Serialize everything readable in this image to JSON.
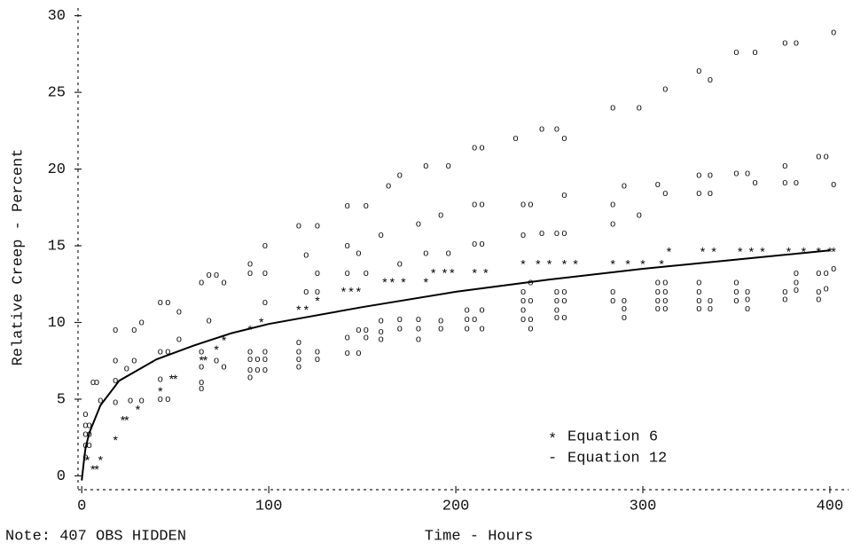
{
  "chart_data": {
    "type": "scatter",
    "x_label": "Time - Hours",
    "y_label": "Relative Creep - Percent",
    "note": "Note: 407 OBS HIDDEN",
    "xlim": [
      -2,
      410
    ],
    "ylim": [
      -0.9,
      30.5
    ],
    "xticks": [
      0,
      100,
      200,
      300,
      400
    ],
    "yticks": [
      0,
      5,
      10,
      15,
      20,
      25,
      30
    ],
    "legend": "lower right",
    "series": [
      {
        "style": "points",
        "marker": "o",
        "color": "#111",
        "x": [
          2,
          2,
          2,
          2,
          2,
          4,
          4,
          4,
          6,
          8,
          10,
          18,
          18,
          18,
          18,
          24,
          26,
          28,
          28,
          32,
          32,
          42,
          42,
          42,
          42,
          46,
          46,
          46,
          52,
          52,
          64,
          64,
          64,
          64,
          64,
          68,
          68,
          72,
          72,
          76,
          76,
          90,
          90,
          90,
          90,
          90,
          90,
          94,
          94,
          98,
          98,
          98,
          98,
          98,
          98,
          116,
          116,
          116,
          116,
          116,
          120,
          120,
          126,
          126,
          126,
          126,
          126,
          142,
          142,
          142,
          142,
          142,
          148,
          148,
          148,
          152,
          152,
          152,
          152,
          160,
          160,
          160,
          160,
          164,
          170,
          170,
          170,
          170,
          180,
          180,
          180,
          180,
          184,
          184,
          192,
          192,
          192,
          196,
          196,
          206,
          206,
          206,
          210,
          210,
          210,
          210,
          214,
          214,
          214,
          214,
          214,
          232,
          236,
          236,
          236,
          236,
          236,
          236,
          240,
          240,
          240,
          240,
          240,
          246,
          246,
          254,
          254,
          254,
          254,
          254,
          254,
          258,
          258,
          258,
          258,
          258,
          258,
          284,
          284,
          284,
          284,
          284,
          290,
          290,
          290,
          290,
          298,
          298,
          308,
          308,
          308,
          308,
          308,
          312,
          312,
          312,
          312,
          312,
          312,
          330,
          330,
          330,
          330,
          330,
          330,
          330,
          336,
          336,
          336,
          336,
          336,
          350,
          350,
          350,
          350,
          350,
          356,
          356,
          356,
          356,
          360,
          360,
          376,
          376,
          376,
          376,
          376,
          382,
          382,
          382,
          382,
          382,
          394,
          394,
          394,
          394,
          398,
          398,
          398,
          402,
          402,
          402
        ],
        "values": [
          4.0,
          3.3,
          2.7,
          2.0,
          1.2,
          3.3,
          2.7,
          2.0,
          6.1,
          6.1,
          4.9,
          9.5,
          7.5,
          6.2,
          4.8,
          7.0,
          4.9,
          9.5,
          7.5,
          10.0,
          4.9,
          11.3,
          8.1,
          6.3,
          5.0,
          11.3,
          8.1,
          5.0,
          10.7,
          8.9,
          12.6,
          8.1,
          7.1,
          6.1,
          5.7,
          13.1,
          10.1,
          13.1,
          7.5,
          12.6,
          7.1,
          13.8,
          13.2,
          8.1,
          7.6,
          6.9,
          6.4,
          7.6,
          6.9,
          15.0,
          13.2,
          11.3,
          8.1,
          7.6,
          6.9,
          16.3,
          8.7,
          8.1,
          7.6,
          7.1,
          14.4,
          12.0,
          16.3,
          13.2,
          12.0,
          8.1,
          7.6,
          17.6,
          15.0,
          13.2,
          9.0,
          8.0,
          14.5,
          9.5,
          8.0,
          17.6,
          13.2,
          9.5,
          9.0,
          15.7,
          10.1,
          9.4,
          8.9,
          18.9,
          19.6,
          13.8,
          10.2,
          9.6,
          16.4,
          10.2,
          9.6,
          8.9,
          20.2,
          14.5,
          17.0,
          10.1,
          9.6,
          20.2,
          14.5,
          10.8,
          10.2,
          9.6,
          21.4,
          17.7,
          15.1,
          10.2,
          21.4,
          17.7,
          15.1,
          10.8,
          9.6,
          22.0,
          17.7,
          15.7,
          12.0,
          11.4,
          10.8,
          10.2,
          17.7,
          12.6,
          11.4,
          10.2,
          9.6,
          22.6,
          15.8,
          22.6,
          15.8,
          12.0,
          11.4,
          10.8,
          10.3,
          22.0,
          18.3,
          15.8,
          12.0,
          11.4,
          10.3,
          24.0,
          17.7,
          16.4,
          12.0,
          11.4,
          18.9,
          11.4,
          10.9,
          10.3,
          24.0,
          17.0,
          19.0,
          12.6,
          12.0,
          11.4,
          10.9,
          25.2,
          18.4,
          12.6,
          12.0,
          11.4,
          10.9,
          26.4,
          19.6,
          18.4,
          12.6,
          12.0,
          11.4,
          10.9,
          25.8,
          19.6,
          18.4,
          11.4,
          10.9,
          27.6,
          19.7,
          12.6,
          12.0,
          11.4,
          19.7,
          12.0,
          11.5,
          10.9,
          27.6,
          19.1,
          28.2,
          20.2,
          19.1,
          12.0,
          11.5,
          28.2,
          19.1,
          13.2,
          12.6,
          12.1,
          20.8,
          13.2,
          12.0,
          11.5,
          20.8,
          13.2,
          12.2,
          28.9,
          19.0,
          13.5
        ]
      },
      {
        "name": "Equation 6",
        "style": "points",
        "marker": "*",
        "color": "#000",
        "x": [
          3,
          6,
          8,
          10,
          18,
          22,
          24,
          30,
          42,
          48,
          50,
          64,
          66,
          72,
          76,
          90,
          96,
          116,
          120,
          126,
          140,
          144,
          148,
          162,
          166,
          172,
          184,
          188,
          194,
          198,
          210,
          216,
          236,
          244,
          250,
          258,
          264,
          284,
          292,
          300,
          310,
          314,
          332,
          338,
          352,
          358,
          364,
          378,
          386,
          394,
          400,
          402
        ],
        "values": [
          1.1,
          0.5,
          0.5,
          1.1,
          2.4,
          3.7,
          3.7,
          4.4,
          5.6,
          6.4,
          6.4,
          7.6,
          7.6,
          8.3,
          8.9,
          9.6,
          10.1,
          10.9,
          10.9,
          11.5,
          12.1,
          12.1,
          12.1,
          12.7,
          12.7,
          12.7,
          12.7,
          13.3,
          13.3,
          13.3,
          13.3,
          13.3,
          13.9,
          13.9,
          13.9,
          13.9,
          13.9,
          13.9,
          13.9,
          13.9,
          13.9,
          14.7,
          14.7,
          14.7,
          14.7,
          14.7,
          14.7,
          14.7,
          14.7,
          14.7,
          14.7,
          14.7
        ]
      },
      {
        "name": "Equation 12",
        "style": "line",
        "marker": "-",
        "color": "#000",
        "x": [
          0,
          1,
          2,
          4,
          6,
          10,
          20,
          40,
          60,
          80,
          100,
          150,
          200,
          250,
          300,
          350,
          400
        ],
        "values": [
          -0.3,
          0.8,
          1.8,
          2.8,
          3.4,
          4.6,
          6.2,
          7.6,
          8.5,
          9.3,
          9.9,
          11.0,
          12.0,
          12.8,
          13.5,
          14.1,
          14.7
        ]
      }
    ]
  }
}
